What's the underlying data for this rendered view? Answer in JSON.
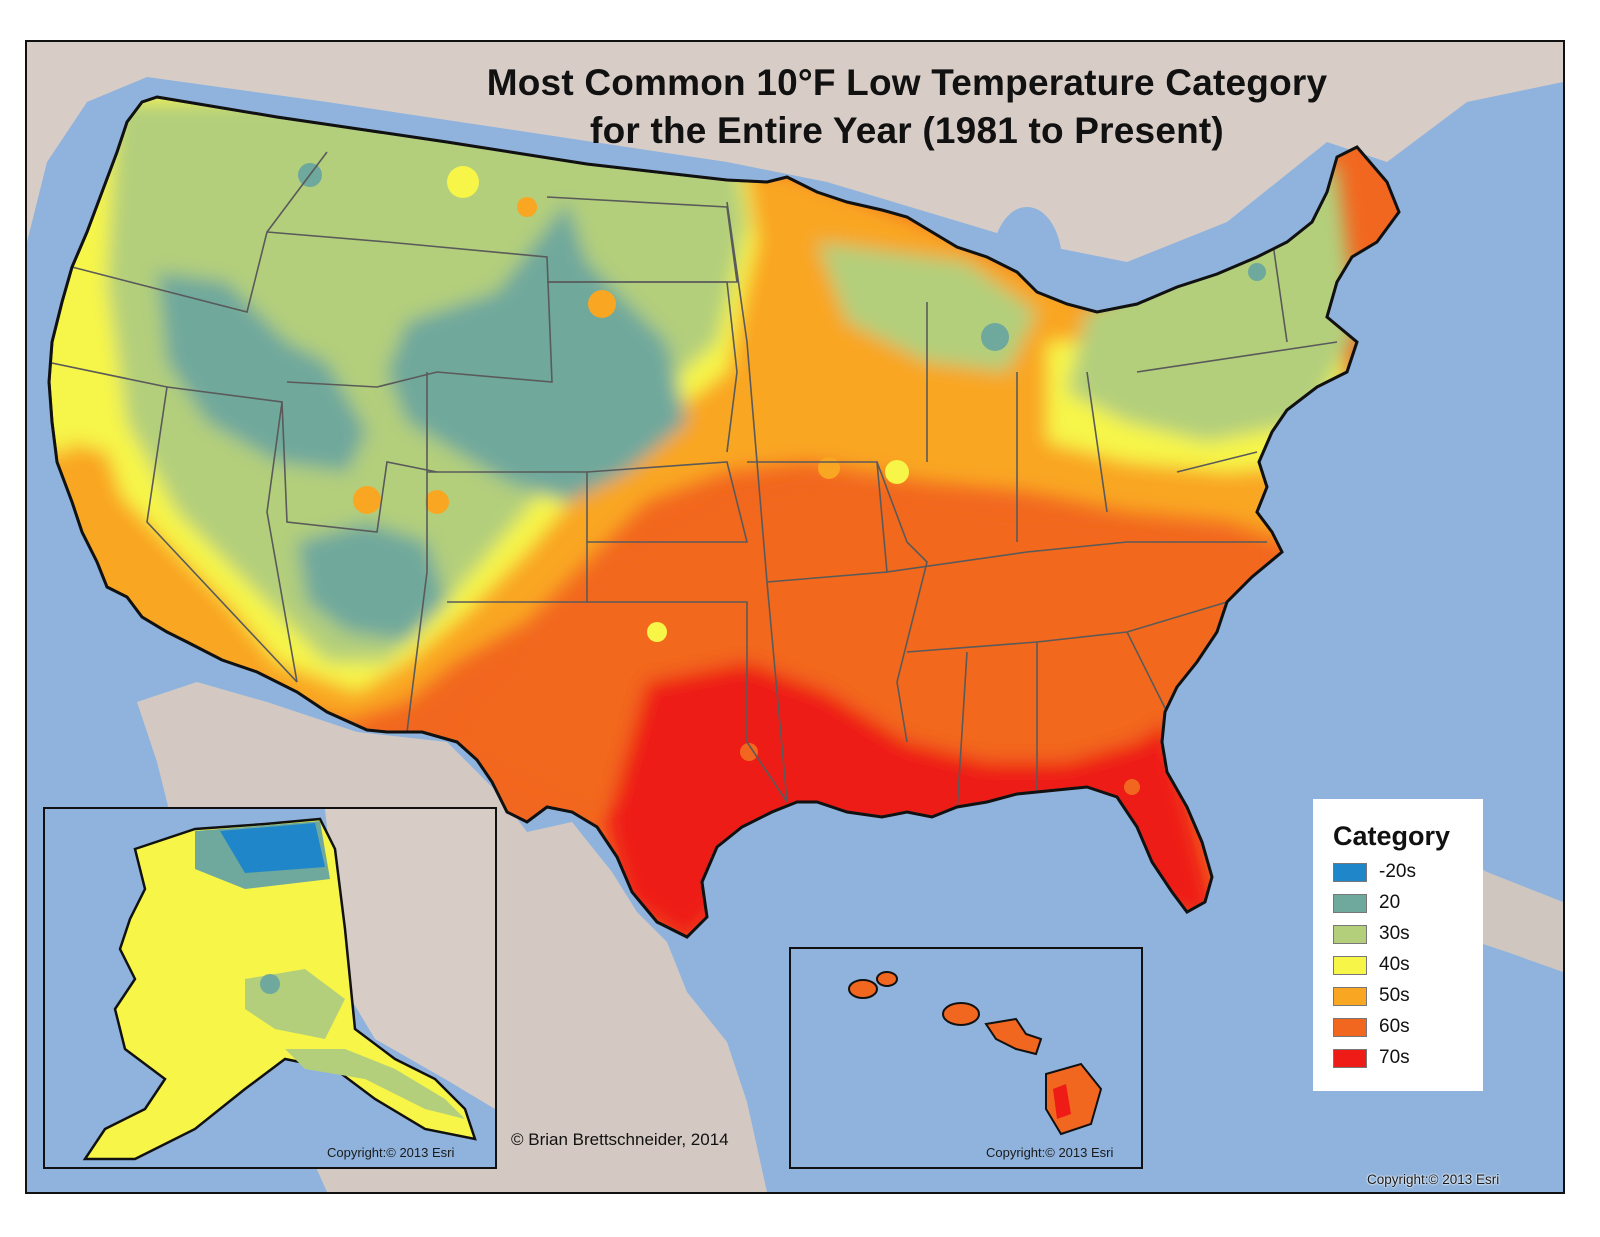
{
  "title": {
    "line1": "Most Common 10°F Low Temperature Category",
    "line2": "for the Entire Year (1981 to Present)"
  },
  "legend": {
    "title": "Category",
    "items": [
      {
        "label": "-20s",
        "color": "#1f86c9"
      },
      {
        "label": "20",
        "color": "#6fa89c"
      },
      {
        "label": "30s",
        "color": "#b3cf7c"
      },
      {
        "label": "40s",
        "color": "#f6f548"
      },
      {
        "label": "50s",
        "color": "#f9a623"
      },
      {
        "label": "60s",
        "color": "#f2671f"
      },
      {
        "label": "70s",
        "color": "#ee1b17"
      }
    ]
  },
  "credit": "© Brian Brettschneider, 2014",
  "copyright": {
    "alaska": "Copyright:© 2013 Esri",
    "hawaii": "Copyright:© 2013 Esri",
    "main": "Copyright:© 2013 Esri"
  },
  "colors": {
    "ocean": "#8fb3dd",
    "land": "#d9cdc4",
    "border": "#5a5a5a"
  }
}
